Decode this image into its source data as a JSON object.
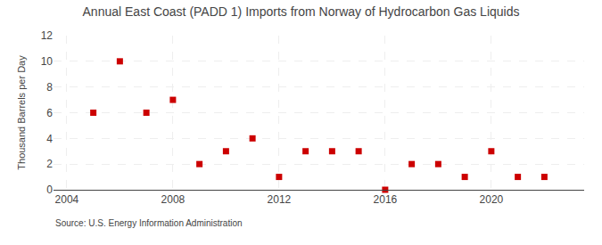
{
  "chart_data": {
    "type": "scatter",
    "title": "Annual East Coast (PADD 1) Imports from Norway of Hydrocarbon Gas Liquids",
    "y_label": "Thousand Barrels per Day",
    "annotations": [
      "Source: U.S. Energy Information Administration"
    ],
    "x": [
      2005,
      2006,
      2007,
      2008,
      2009,
      2010,
      2011,
      2012,
      2013,
      2014,
      2015,
      2016,
      2017,
      2018,
      2019,
      2020,
      2021,
      2022
    ],
    "values": [
      6,
      10,
      6,
      7,
      2,
      3,
      4,
      1,
      3,
      3,
      3,
      0,
      2,
      2,
      1,
      3,
      1,
      1
    ],
    "color": "#cc0000",
    "marker": "square",
    "xlim": [
      2003.5,
      2023.5
    ],
    "xticks": [
      2004,
      2008,
      2012,
      2016,
      2020
    ],
    "ylim": [
      0,
      12
    ],
    "yticks": [
      0,
      2,
      4,
      6,
      8,
      10,
      12
    ],
    "grid": true
  }
}
